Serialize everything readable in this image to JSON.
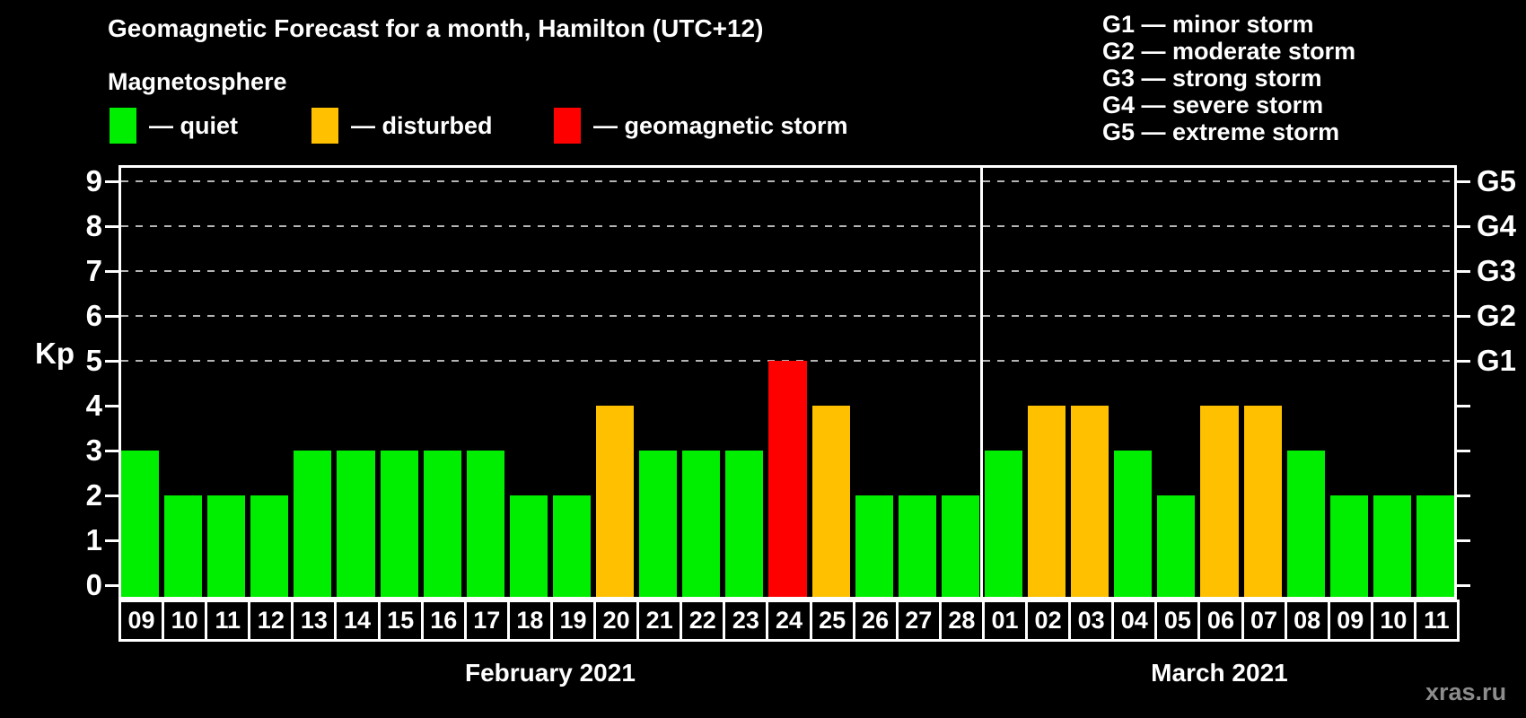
{
  "title": "Geomagnetic Forecast for a month, Hamilton (UTC+12)",
  "subtitle": "Magnetosphere",
  "legend": {
    "items": [
      {
        "key": "quiet",
        "label": "— quiet"
      },
      {
        "key": "disturbed",
        "label": "— disturbed"
      },
      {
        "key": "storm",
        "label": "— geomagnetic storm"
      }
    ]
  },
  "g_legend": [
    "G1 — minor storm",
    "G2 — moderate storm",
    "G3 — strong storm",
    "G4 — severe storm",
    "G5 — extreme storm"
  ],
  "watermark": "xras.ru",
  "colors": {
    "quiet": "#00ee00",
    "disturbed": "#ffc000",
    "storm": "#ff0000",
    "background": "#000000",
    "axis": "#ffffff",
    "gridline": "#b4b4b4",
    "watermark_gray": "#8c8c8c"
  },
  "chart_data": {
    "type": "bar",
    "title": "Geomagnetic Forecast for a month, Hamilton (UTC+12)",
    "ylabel": "Kp",
    "ylim": [
      0,
      9
    ],
    "yticks": [
      0,
      1,
      2,
      3,
      4,
      5,
      6,
      7,
      8,
      9
    ],
    "gridlines_at": [
      5,
      6,
      7,
      8,
      9
    ],
    "grid": "dashed-above-5-only",
    "legend_position": "top-left",
    "right_axis": [
      {
        "kp": 5,
        "label": "G1"
      },
      {
        "kp": 6,
        "label": "G2"
      },
      {
        "kp": 7,
        "label": "G3"
      },
      {
        "kp": 8,
        "label": "G4"
      },
      {
        "kp": 9,
        "label": "G5"
      }
    ],
    "months": [
      {
        "label": "February 2021",
        "days": [
          {
            "date": "09",
            "kp": 3,
            "condition": "quiet"
          },
          {
            "date": "10",
            "kp": 2,
            "condition": "quiet"
          },
          {
            "date": "11",
            "kp": 2,
            "condition": "quiet"
          },
          {
            "date": "12",
            "kp": 2,
            "condition": "quiet"
          },
          {
            "date": "13",
            "kp": 3,
            "condition": "quiet"
          },
          {
            "date": "14",
            "kp": 3,
            "condition": "quiet"
          },
          {
            "date": "15",
            "kp": 3,
            "condition": "quiet"
          },
          {
            "date": "16",
            "kp": 3,
            "condition": "quiet"
          },
          {
            "date": "17",
            "kp": 3,
            "condition": "quiet"
          },
          {
            "date": "18",
            "kp": 2,
            "condition": "quiet"
          },
          {
            "date": "19",
            "kp": 2,
            "condition": "quiet"
          },
          {
            "date": "20",
            "kp": 4,
            "condition": "disturbed"
          },
          {
            "date": "21",
            "kp": 3,
            "condition": "quiet"
          },
          {
            "date": "22",
            "kp": 3,
            "condition": "quiet"
          },
          {
            "date": "23",
            "kp": 3,
            "condition": "quiet"
          },
          {
            "date": "24",
            "kp": 5,
            "condition": "storm"
          },
          {
            "date": "25",
            "kp": 4,
            "condition": "disturbed"
          },
          {
            "date": "26",
            "kp": 2,
            "condition": "quiet"
          },
          {
            "date": "27",
            "kp": 2,
            "condition": "quiet"
          },
          {
            "date": "28",
            "kp": 2,
            "condition": "quiet"
          }
        ]
      },
      {
        "label": "March 2021",
        "days": [
          {
            "date": "01",
            "kp": 3,
            "condition": "quiet"
          },
          {
            "date": "02",
            "kp": 4,
            "condition": "disturbed"
          },
          {
            "date": "03",
            "kp": 4,
            "condition": "disturbed"
          },
          {
            "date": "04",
            "kp": 3,
            "condition": "quiet"
          },
          {
            "date": "05",
            "kp": 2,
            "condition": "quiet"
          },
          {
            "date": "06",
            "kp": 4,
            "condition": "disturbed"
          },
          {
            "date": "07",
            "kp": 4,
            "condition": "disturbed"
          },
          {
            "date": "08",
            "kp": 3,
            "condition": "quiet"
          },
          {
            "date": "09",
            "kp": 2,
            "condition": "quiet"
          },
          {
            "date": "10",
            "kp": 2,
            "condition": "quiet"
          },
          {
            "date": "11",
            "kp": 2,
            "condition": "quiet"
          }
        ]
      }
    ]
  }
}
